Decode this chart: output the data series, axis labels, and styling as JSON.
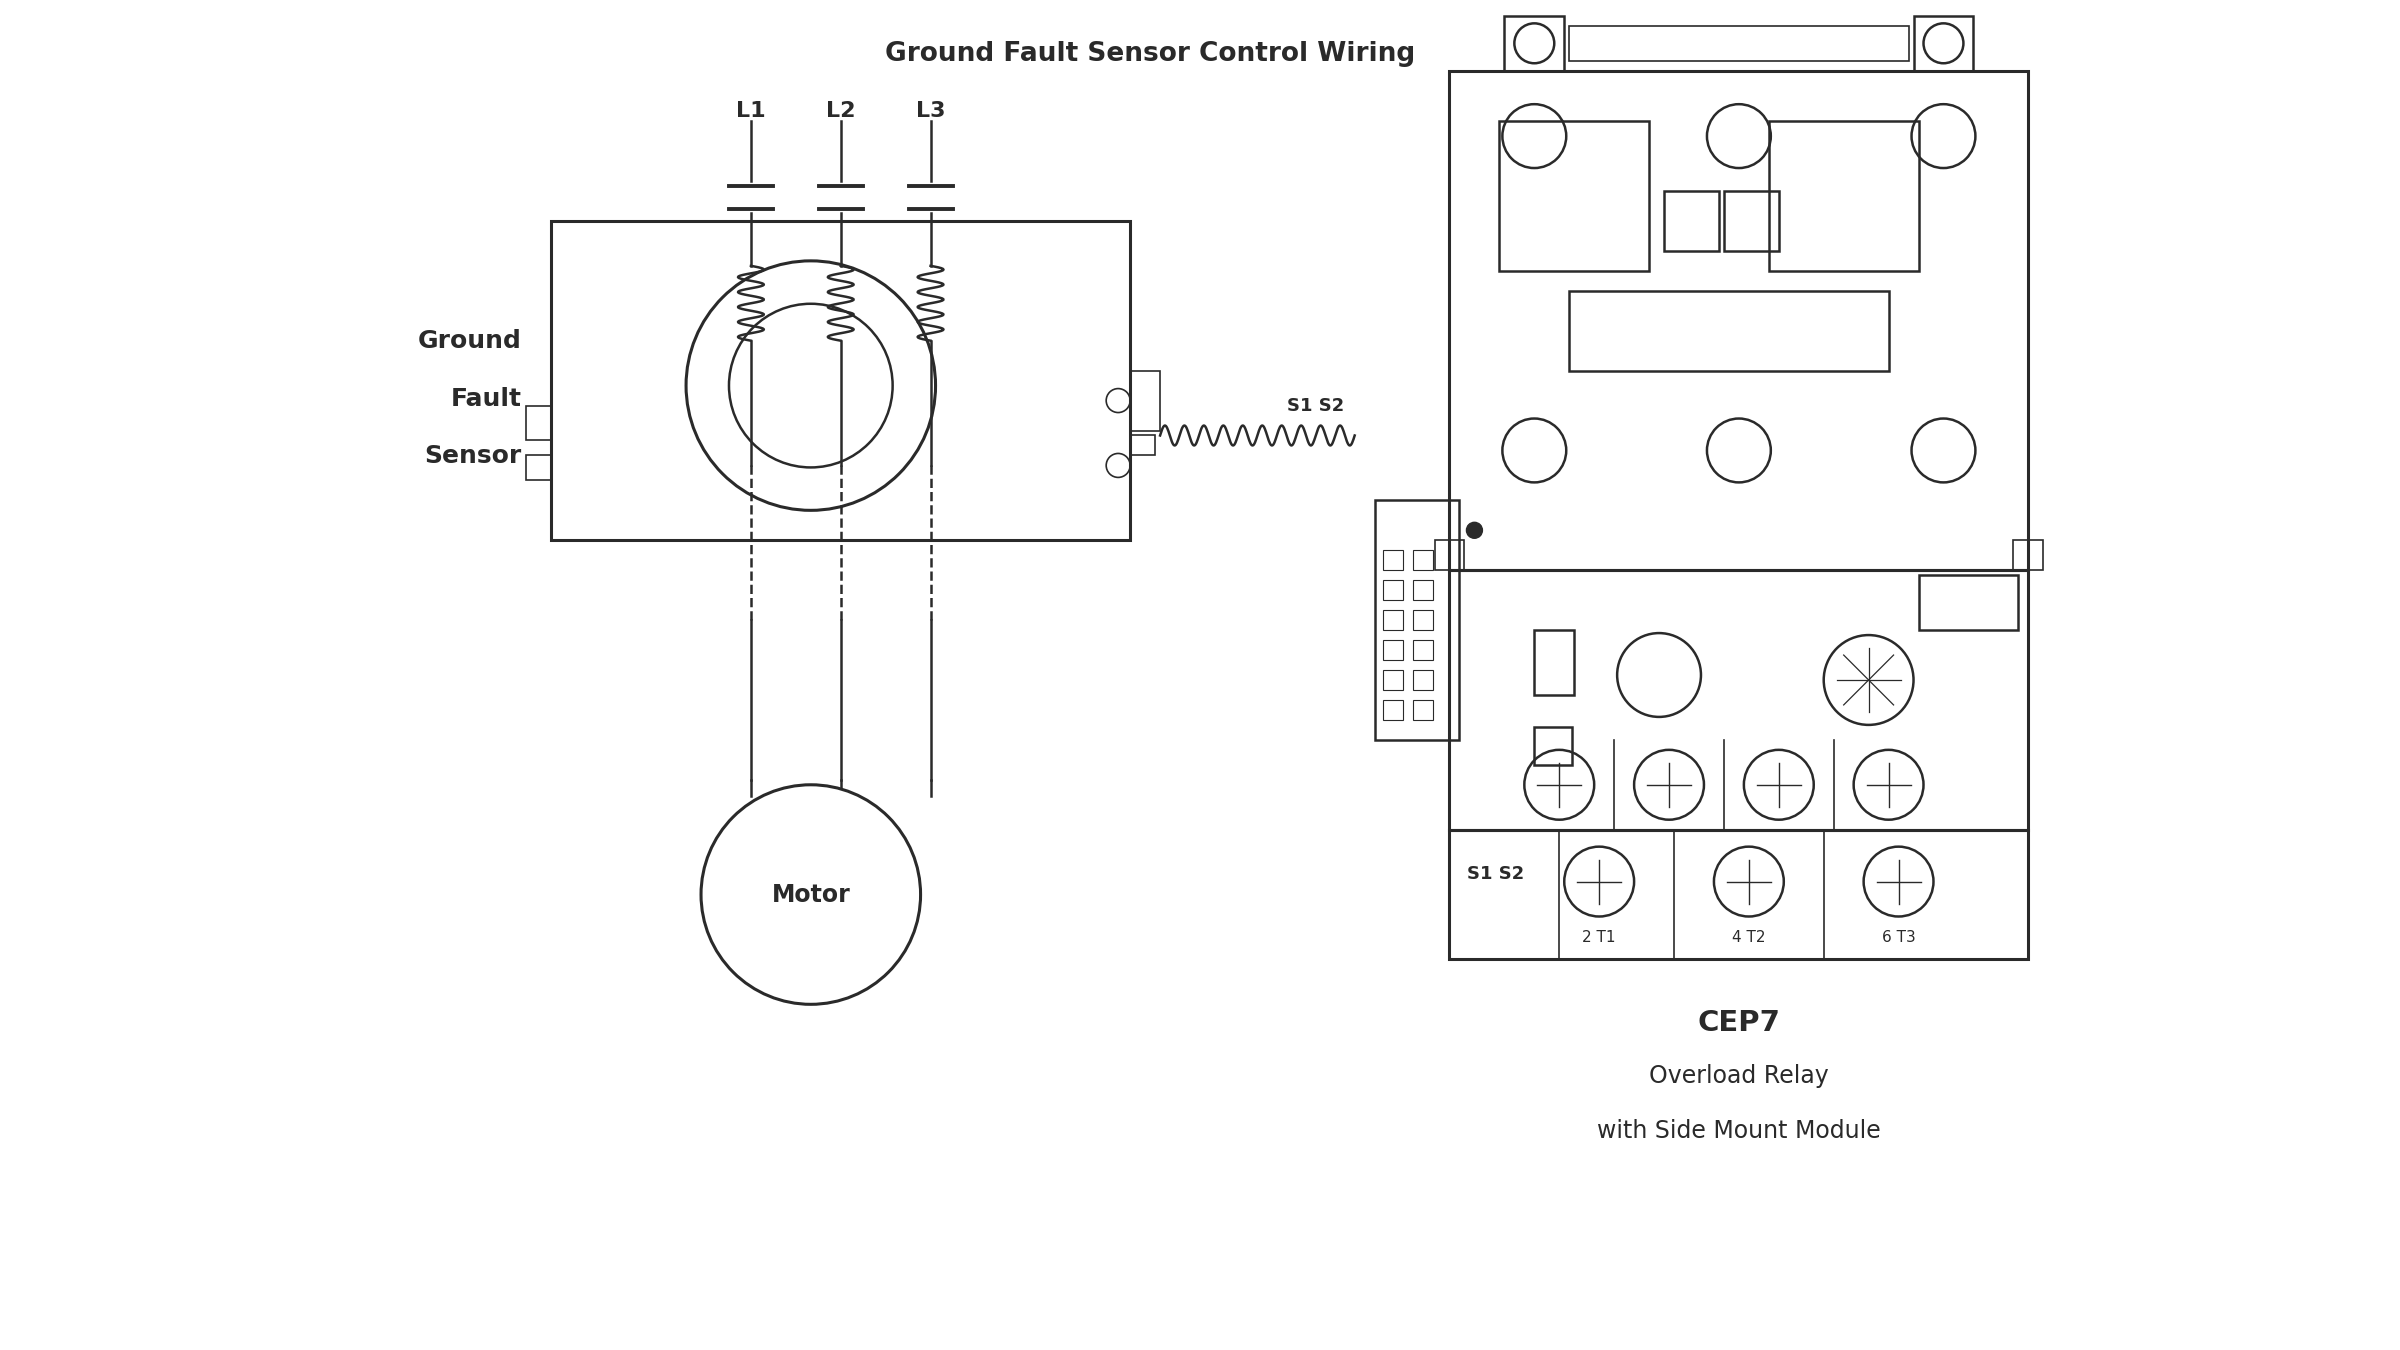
{
  "title": "Ground Fault Sensor Control Wiring",
  "background_color": "#ffffff",
  "line_color": "#2a2a2a",
  "label_gfs": [
    "Ground",
    "Fault",
    "Sensor"
  ],
  "label_motor": "Motor",
  "label_cep7_lines": [
    "CEP7",
    "Overload Relay",
    "with Side Mount Module"
  ],
  "label_L1": "L1",
  "label_L2": "L2",
  "label_L3": "L3",
  "label_S1S2": "S1 S2",
  "label_terminals": [
    "2 T1",
    "4 T2",
    "6 T3"
  ],
  "figsize": [
    24.0,
    13.5
  ],
  "dpi": 100
}
